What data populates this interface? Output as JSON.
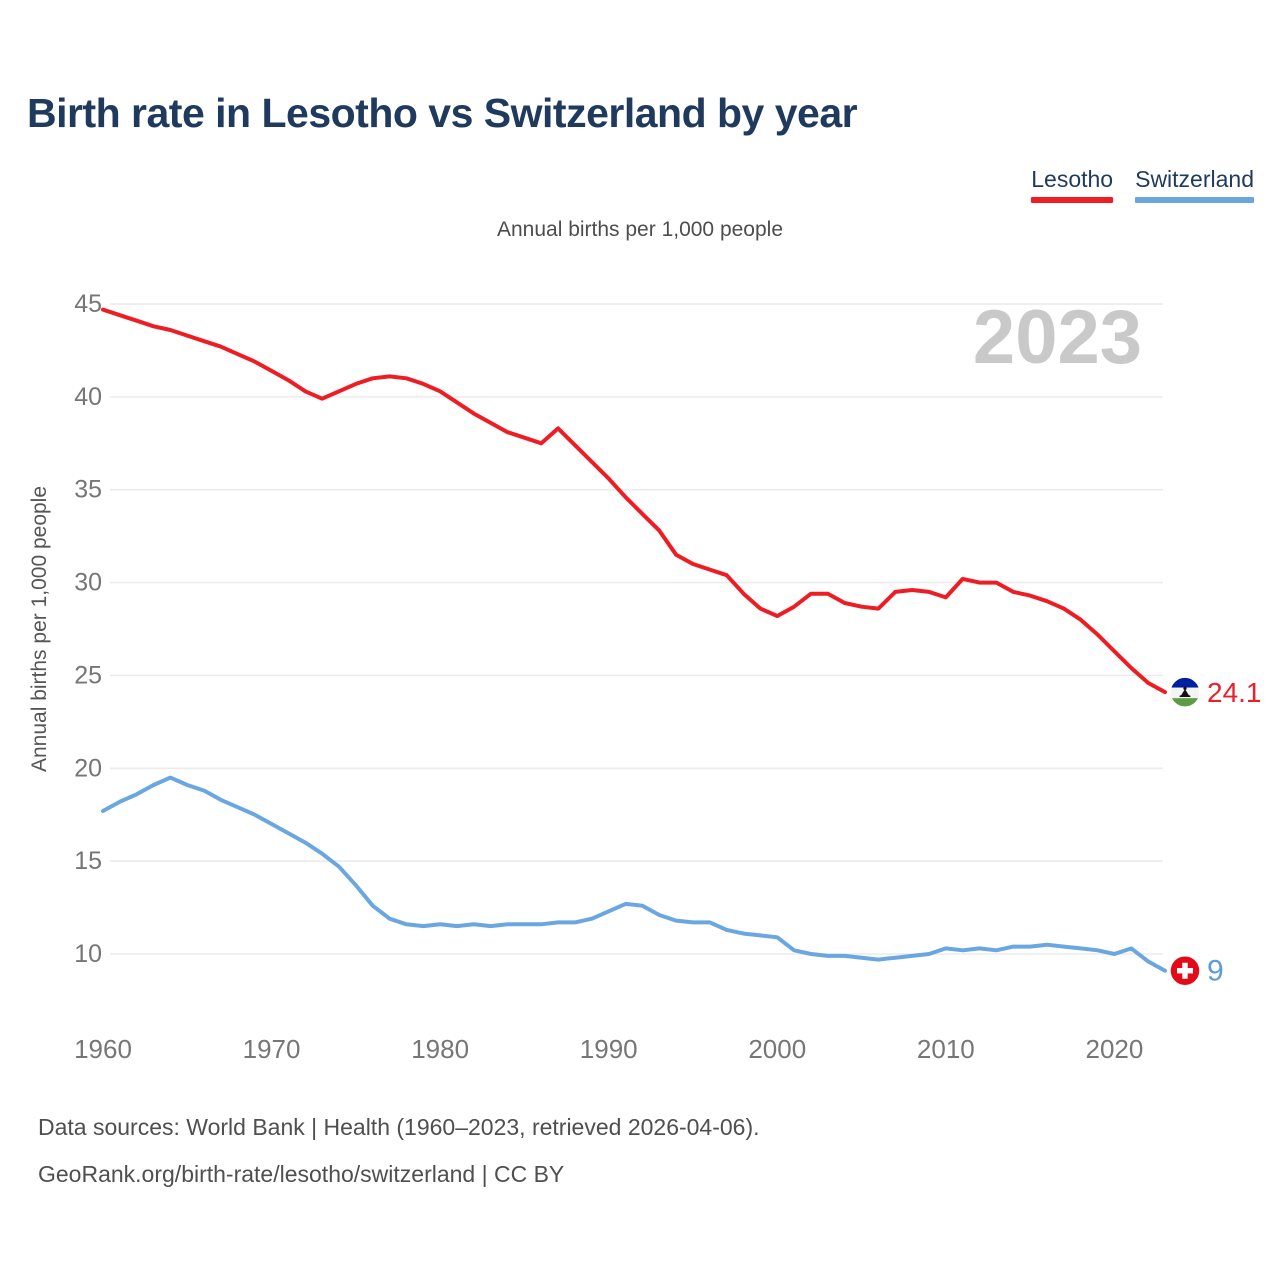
{
  "page": {
    "title": "Birth rate in Lesotho vs Switzerland by year",
    "subtitle": "Annual births per 1,000 people",
    "watermark": "2023"
  },
  "legend": {
    "items": [
      {
        "label": "Lesotho",
        "color": "#ee1c23"
      },
      {
        "label": "Switzerland",
        "color": "#6aa7e0"
      }
    ]
  },
  "footer": {
    "line1": "Data sources: World Bank | Health (1960–2023, retrieved 2026-04-06).",
    "line2": "GeoRank.org/birth-rate/lesotho/switzerland | CC BY"
  },
  "chart_data": {
    "type": "line",
    "title": "Annual births per 1,000 people",
    "xlabel": "",
    "ylabel": "Annual births per 1,000 people",
    "x_range": [
      1960,
      2023
    ],
    "x_step": 1,
    "x_ticks": [
      1960,
      1970,
      1980,
      1990,
      2000,
      2010,
      2020
    ],
    "y_ticks": [
      10,
      15,
      20,
      25,
      30,
      35,
      40,
      45
    ],
    "ylim": [
      8.5,
      46
    ],
    "grid": true,
    "legend_position": "top-right",
    "watermark": "2023",
    "series": [
      {
        "name": "Lesotho",
        "color": "#ee1c23",
        "flag": "lesotho",
        "end_label": "24.1",
        "values": [
          44.7,
          44.4,
          44.1,
          43.8,
          43.6,
          43.3,
          43.0,
          42.7,
          42.3,
          41.9,
          41.4,
          40.9,
          40.3,
          39.9,
          40.3,
          40.7,
          41.0,
          41.1,
          41.0,
          40.7,
          40.3,
          39.7,
          39.1,
          38.6,
          38.1,
          37.8,
          37.5,
          38.3,
          37.4,
          36.5,
          35.6,
          34.6,
          33.7,
          32.8,
          31.5,
          31.0,
          30.7,
          30.4,
          29.4,
          28.6,
          28.2,
          28.7,
          29.4,
          29.4,
          28.9,
          28.7,
          28.6,
          29.5,
          29.6,
          29.5,
          29.2,
          30.2,
          30.0,
          30.0,
          29.5,
          29.3,
          29.0,
          28.6,
          28.0,
          27.2,
          26.3,
          25.4,
          24.6,
          24.1
        ]
      },
      {
        "name": "Switzerland",
        "color": "#6aa7e0",
        "flag": "switzerland",
        "end_label": "9",
        "values": [
          17.7,
          18.2,
          18.6,
          19.1,
          19.5,
          19.1,
          18.8,
          18.3,
          17.9,
          17.5,
          17.0,
          16.5,
          16.0,
          15.4,
          14.7,
          13.7,
          12.6,
          11.9,
          11.6,
          11.5,
          11.6,
          11.5,
          11.6,
          11.5,
          11.6,
          11.6,
          11.6,
          11.7,
          11.7,
          11.9,
          12.3,
          12.7,
          12.6,
          12.1,
          11.8,
          11.7,
          11.7,
          11.3,
          11.1,
          11.0,
          10.9,
          10.2,
          10.0,
          9.9,
          9.9,
          9.8,
          9.7,
          9.8,
          9.9,
          10.0,
          10.3,
          10.2,
          10.3,
          10.2,
          10.4,
          10.4,
          10.5,
          10.4,
          10.3,
          10.2,
          10.0,
          10.3,
          9.6,
          9.1
        ]
      }
    ]
  }
}
